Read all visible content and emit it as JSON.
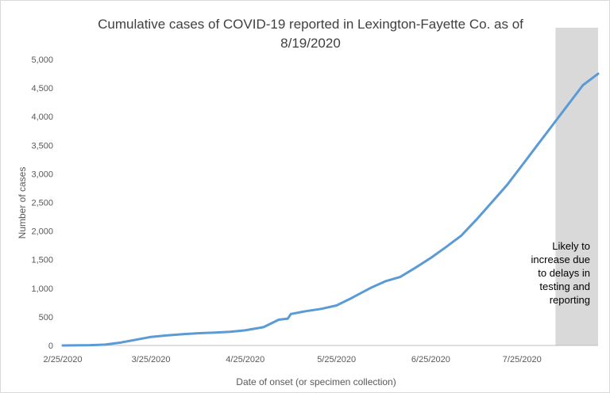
{
  "chart_data": {
    "type": "line",
    "title_line1": "Cumulative cases of COVID-19 reported in Lexington-Fayette Co.  as of",
    "title_line2": "8/19/2020",
    "xlabel": "Date of onset (or specimen collection)",
    "ylabel": "Number of cases",
    "ylim": [
      0,
      5000
    ],
    "y_ticks": [
      "0",
      "500",
      "1,000",
      "1,500",
      "2,000",
      "2,500",
      "3,000",
      "3,500",
      "4,000",
      "4,500",
      "5,000"
    ],
    "x_ticks": [
      "2/25/2020",
      "3/25/2020",
      "4/25/2020",
      "5/25/2020",
      "6/25/2020",
      "7/25/2020"
    ],
    "grid": false,
    "legend": "none",
    "series": [
      {
        "color": "#5b9bd5",
        "x": [
          "2/25/2020",
          "3/5/2020",
          "3/10/2020",
          "3/15/2020",
          "3/20/2020",
          "3/25/2020",
          "3/30/2020",
          "4/5/2020",
          "4/10/2020",
          "4/15/2020",
          "4/20/2020",
          "4/25/2020",
          "5/1/2020",
          "5/6/2020",
          "5/9/2020",
          "5/10/2020",
          "5/15/2020",
          "5/20/2020",
          "5/25/2020",
          "5/30/2020",
          "6/5/2020",
          "6/10/2020",
          "6/15/2020",
          "6/20/2020",
          "6/25/2020",
          "6/30/2020",
          "7/5/2020",
          "7/10/2020",
          "7/15/2020",
          "7/20/2020",
          "7/25/2020",
          "7/30/2020",
          "8/4/2020",
          "8/9/2020",
          "8/14/2020",
          "8/19/2020"
        ],
        "y": [
          0,
          5,
          15,
          50,
          100,
          150,
          175,
          200,
          215,
          225,
          240,
          265,
          320,
          450,
          470,
          550,
          600,
          640,
          700,
          830,
          1000,
          1120,
          1200,
          1360,
          1530,
          1720,
          1920,
          2200,
          2500,
          2800,
          3150,
          3500,
          3850,
          4200,
          4550,
          4750
        ]
      }
    ],
    "shaded_region": {
      "from": "8/5/2020",
      "to": "8/19/2020",
      "color": "#d9d9d9"
    },
    "annotation": [
      "Likely to",
      "increase due",
      "to delays in",
      "testing and",
      "reporting"
    ]
  }
}
